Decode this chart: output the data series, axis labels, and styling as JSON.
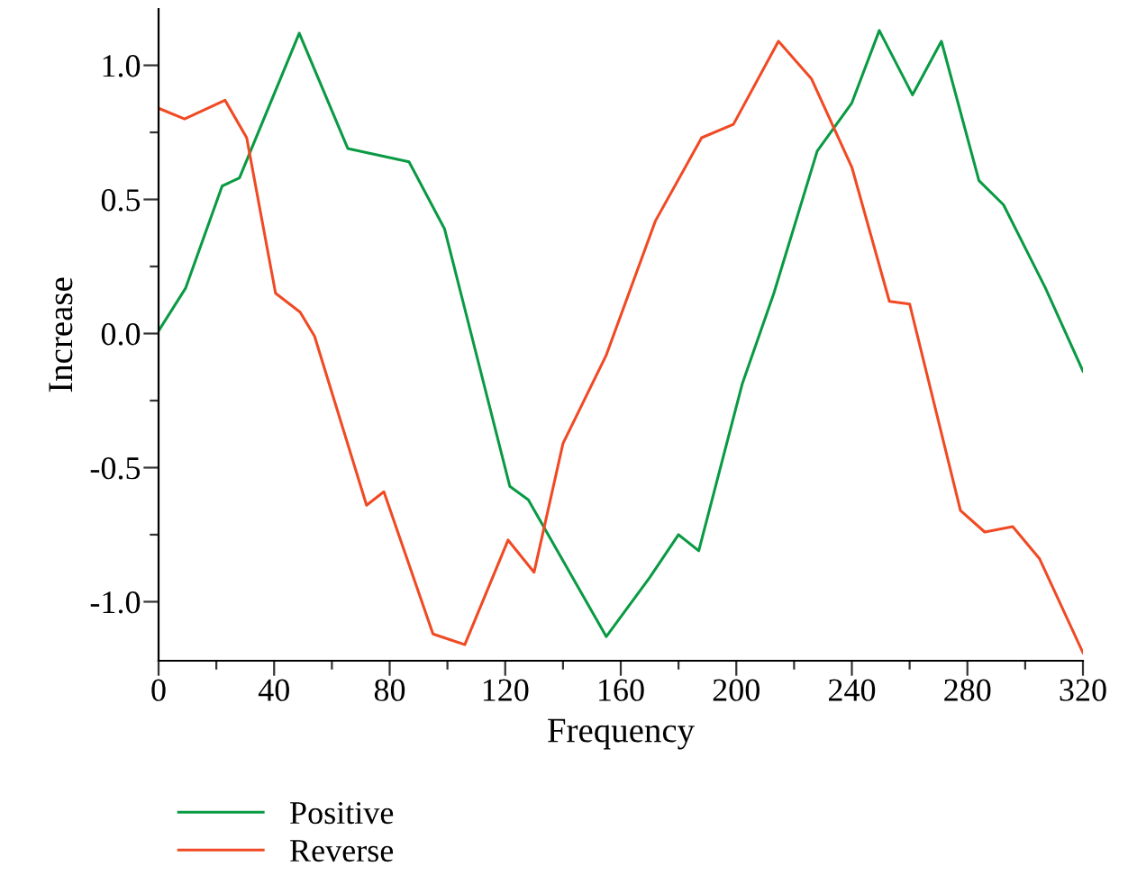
{
  "chart_data": {
    "type": "line",
    "xlabel": "Frequency",
    "ylabel": "Increase",
    "xlim": [
      0,
      320
    ],
    "ylim": [
      -1.22,
      1.21
    ],
    "xticks": [
      0,
      {
        "value": 20,
        "label": null
      },
      40,
      {
        "value": 60,
        "label": null
      },
      80,
      {
        "value": 100,
        "label": null
      },
      120,
      {
        "value": 140,
        "label": null
      },
      160,
      {
        "value": 180,
        "label": null
      },
      200,
      {
        "value": 220,
        "label": null
      },
      240,
      {
        "value": 260,
        "label": null
      },
      280,
      {
        "value": 300,
        "label": null
      },
      320
    ],
    "yticks": [
      {
        "value": -1.0,
        "label": "-1.0"
      },
      {
        "value": -0.75,
        "label": null
      },
      {
        "value": -0.5,
        "label": "-0.5"
      },
      {
        "value": -0.25,
        "label": null
      },
      {
        "value": 0.0,
        "label": "0.0"
      },
      {
        "value": 0.25,
        "label": null
      },
      {
        "value": 0.5,
        "label": "0.5"
      },
      {
        "value": 0.75,
        "label": null
      },
      {
        "value": 1.0,
        "label": "1.0"
      }
    ],
    "grid": false,
    "legend": "bottom left",
    "marker": "none",
    "line_style": "solid",
    "series": [
      {
        "name": "Positive",
        "color": "#0a9a44",
        "x": [
          0,
          9.4,
          22,
          28,
          48.7,
          65.5,
          86.7,
          99,
          121.6,
          128,
          155,
          170,
          180,
          187,
          202,
          213,
          228,
          240,
          249.5,
          261,
          271,
          284,
          292.5,
          307,
          320
        ],
        "values": [
          0.01,
          0.17,
          0.55,
          0.58,
          1.12,
          0.69,
          0.64,
          0.39,
          -0.57,
          -0.62,
          -1.13,
          -0.91,
          -0.75,
          -0.81,
          -0.19,
          0.15,
          0.68,
          0.86,
          1.13,
          0.89,
          1.09,
          0.57,
          0.48,
          0.17,
          -0.14
        ]
      },
      {
        "name": "Reverse",
        "color": "#f04a24",
        "x": [
          0,
          9,
          23,
          30.5,
          40.5,
          49,
          54,
          72,
          78,
          95,
          106,
          121,
          130,
          140,
          155,
          172,
          188,
          199,
          214.6,
          226,
          240,
          253,
          260,
          277.6,
          286,
          295.7,
          305,
          320
        ],
        "values": [
          0.84,
          0.8,
          0.87,
          0.73,
          0.15,
          0.08,
          -0.01,
          -0.64,
          -0.59,
          -1.12,
          -1.16,
          -0.77,
          -0.89,
          -0.41,
          -0.08,
          0.42,
          0.73,
          0.78,
          1.09,
          0.95,
          0.62,
          0.12,
          0.11,
          -0.66,
          -0.74,
          -0.72,
          -0.84,
          -1.19
        ]
      }
    ]
  }
}
